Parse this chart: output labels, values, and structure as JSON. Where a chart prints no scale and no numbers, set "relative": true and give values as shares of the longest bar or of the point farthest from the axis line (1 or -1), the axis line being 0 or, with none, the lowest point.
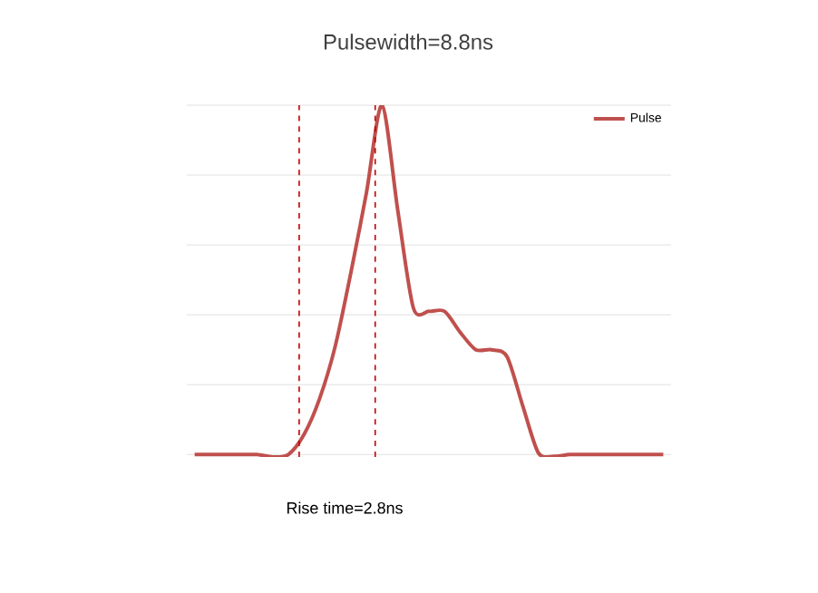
{
  "chart_data": {
    "type": "line",
    "title": "Pulsewidth=8.8ns",
    "relative": true,
    "grid": "y",
    "legend": "top right",
    "categories": [
      null,
      null,
      null,
      null,
      null,
      null,
      null,
      null,
      null,
      null,
      null,
      null,
      null,
      null,
      null,
      null,
      null,
      null,
      null,
      null,
      null,
      null,
      null,
      null,
      null,
      null,
      null,
      null,
      null,
      null,
      null
    ],
    "series": [
      {
        "name": "Pulse",
        "color": "#c0504d",
        "values": [
          0,
          0,
          0,
          0,
          0,
          -0.007,
          0,
          0.057,
          0.16,
          0.31,
          0.52,
          0.75,
          1,
          0.7,
          0.42,
          0.41,
          0.41,
          0.35,
          0.3,
          0.3,
          0.28,
          0.14,
          0.005,
          -0.005,
          0,
          0,
          0,
          0,
          0,
          0,
          0
        ]
      }
    ],
    "annotations": [
      "Rise time=2.8ns"
    ]
  }
}
